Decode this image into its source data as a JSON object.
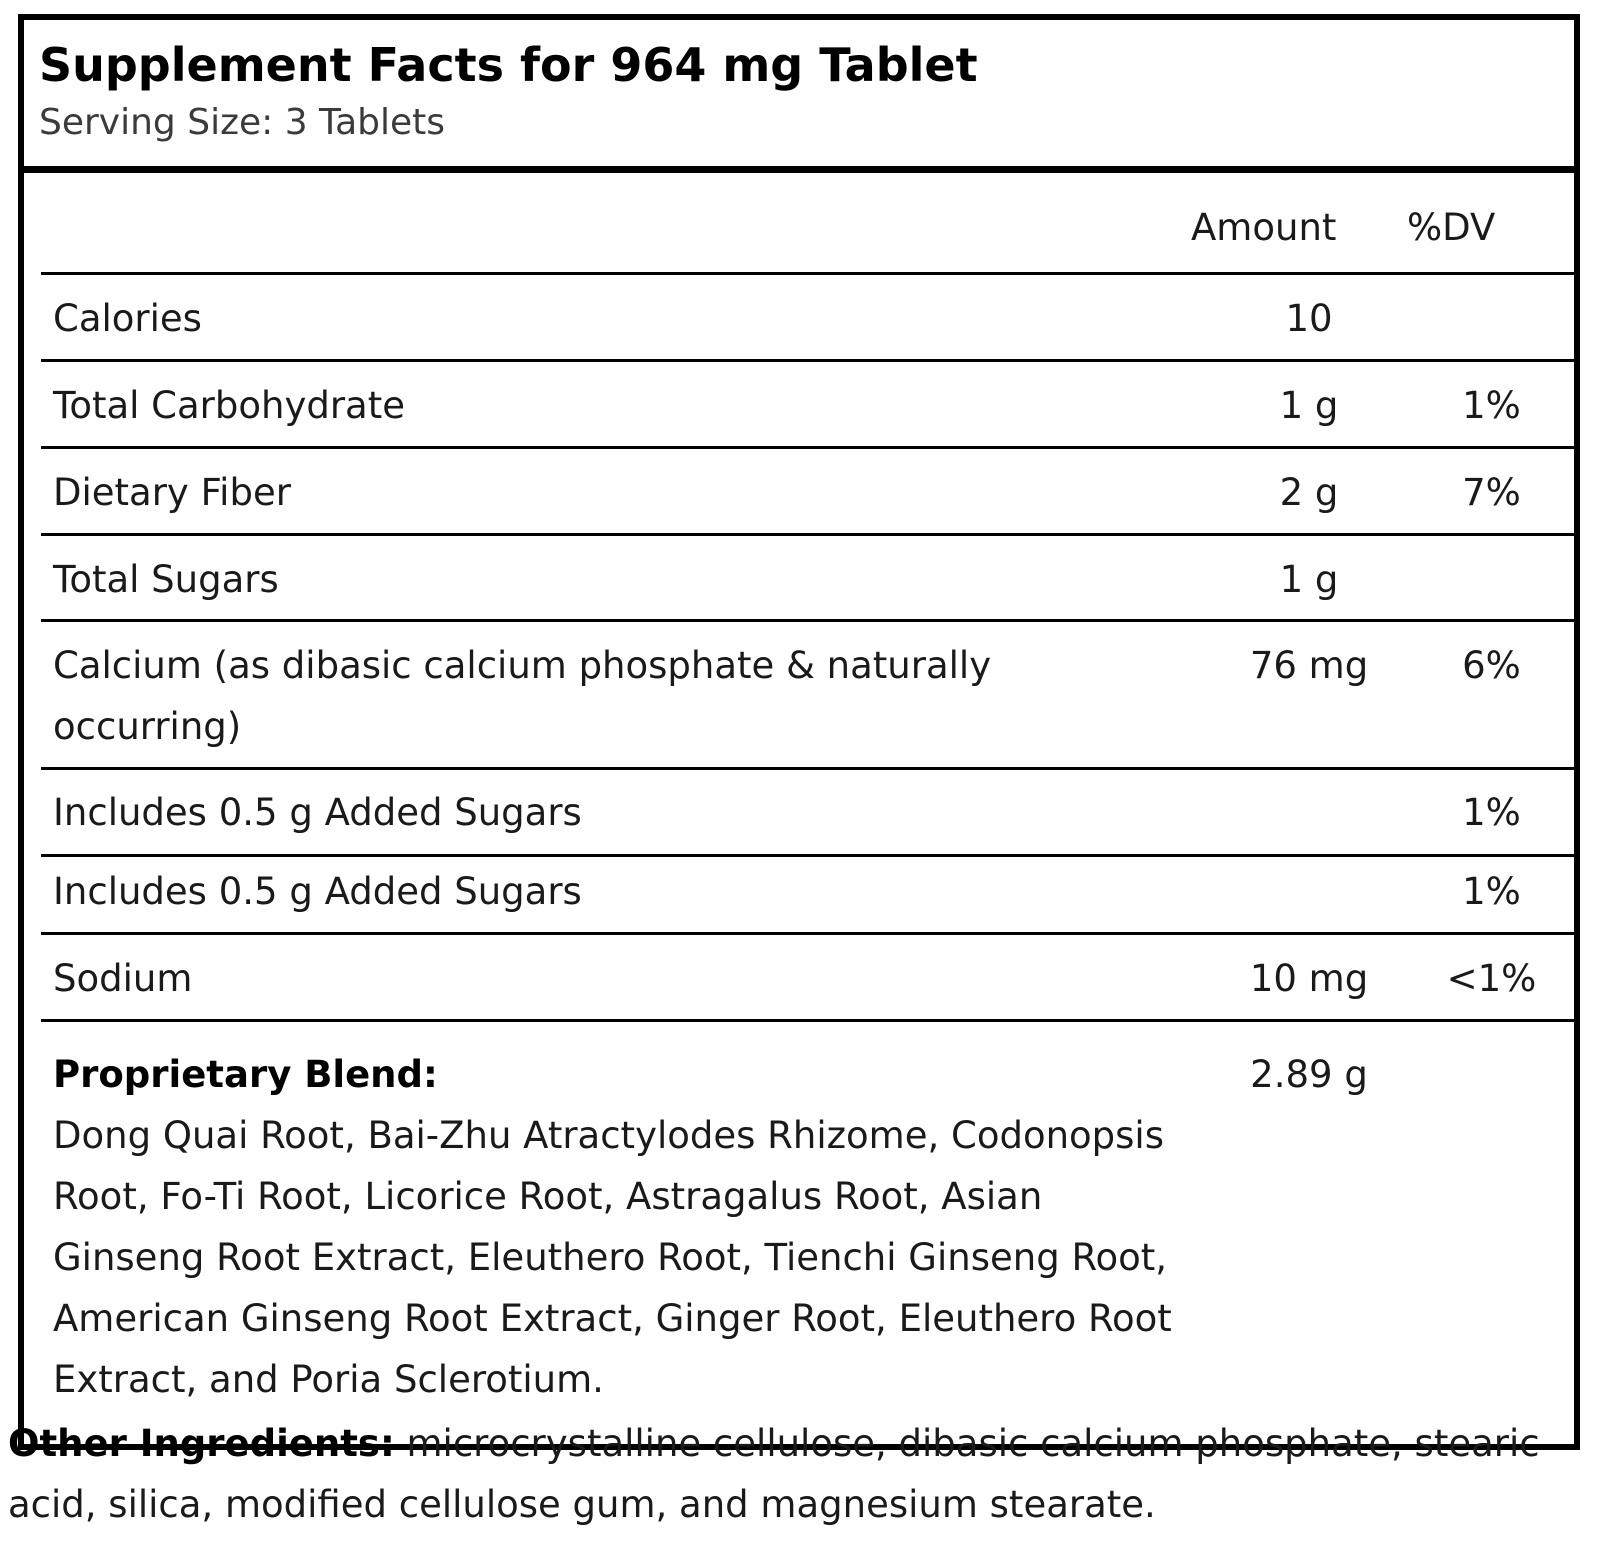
{
  "header": {
    "title": "Supplement Facts for 964 mg Tablet",
    "serving_size": "Serving Size: 3 Tablets"
  },
  "columns": {
    "amount": "Amount",
    "dv": "%DV"
  },
  "rows": [
    {
      "name": "Calories",
      "amount": "10",
      "dv": ""
    },
    {
      "name": "Total Carbohydrate",
      "amount": "1 g",
      "dv": "1%"
    },
    {
      "name": "Dietary Fiber",
      "amount": "2 g",
      "dv": "7%"
    },
    {
      "name": "Total Sugars",
      "amount": "1 g",
      "dv": ""
    },
    {
      "name": "Calcium (as dibasic calcium phosphate & naturally occurring)",
      "amount": "76 mg",
      "dv": "6%"
    },
    {
      "name": "Includes 0.5 g Added Sugars",
      "amount": "",
      "dv": "1%"
    },
    {
      "name": "Includes 0.5 g Added Sugars",
      "amount": "",
      "dv": "1%"
    },
    {
      "name": "Sodium",
      "amount": "10 mg",
      "dv": "<1%"
    }
  ],
  "blend": {
    "title": "Proprietary Blend:",
    "amount": "2.89 g",
    "ingredients": "Dong Quai Root, Bai-Zhu Atractylodes Rhizome, Codonopsis Root, Fo-Ti Root, Licorice Root, Astragalus Root, Asian Ginseng Root Extract, Eleuthero Root, Tienchi Ginseng Root, American Ginseng Root Extract, Ginger Root, Eleuthero Root Extract, and Poria Sclerotium."
  },
  "other_ingredients": {
    "label": "Other Ingredients:",
    "text": " microcrystalline cellulose, dibasic calcium phosphate, stearic acid, silica, modified cellulose gum, and magnesium stearate."
  }
}
